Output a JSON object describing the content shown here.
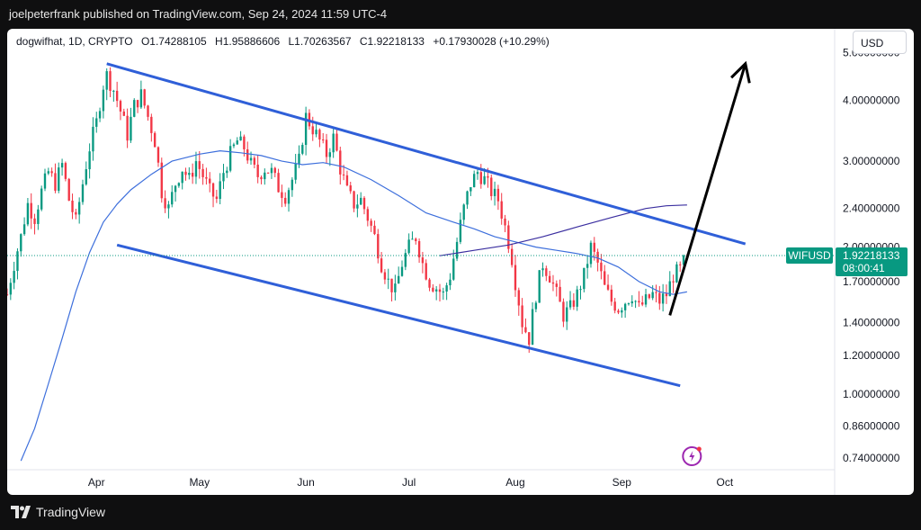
{
  "header": {
    "publisher_line": "joelpeterfrank published on TradingView.com, Sep 24, 2024 11:59 UTC-4"
  },
  "legend": {
    "symbol": "dogwifhat, 1D, CRYPTO",
    "open": "O1.74288105",
    "high": "H1.95886606",
    "low": "L1.70263567",
    "close": "C1.92218133",
    "change": "+0.17930028 (+10.29%)"
  },
  "currency_button": "USD",
  "price_tag": {
    "ticker": "WIFUSD",
    "price": "1.92218133",
    "countdown": "08:00:41",
    "color": "#089981"
  },
  "footer": {
    "brand": "TradingView"
  },
  "colors": {
    "up": "#089981",
    "down": "#f23645",
    "channel": "#2f5fd8",
    "ma_short": "#3d6fdc",
    "ma_long": "#3b2fa0",
    "arrow": "#000000"
  },
  "chart_data": {
    "type": "candlestick",
    "scale": "log",
    "y_tick_labels": [
      "5.00000000",
      "4.00000000",
      "3.00000000",
      "2.40000000",
      "2.00000000",
      "1.70000000",
      "1.40000000",
      "1.20000000",
      "1.00000000",
      "0.86000000",
      "0.74000000"
    ],
    "y_tick_values": [
      5.0,
      4.0,
      3.0,
      2.4,
      2.0,
      1.7,
      1.4,
      1.2,
      1.0,
      0.86,
      0.74
    ],
    "ylim": [
      0.7,
      5.6
    ],
    "x_tick_labels": [
      "Apr",
      "May",
      "Jun",
      "Jul",
      "Aug",
      "Sep",
      "Oct"
    ],
    "x_tick_days": [
      0,
      30,
      61,
      91,
      122,
      153,
      183
    ],
    "x_range_days": [
      -26,
      215
    ],
    "last_price": 1.92218133,
    "price_points": [
      [
        -26,
        1.6
      ],
      [
        -24,
        1.85
      ],
      [
        -22,
        2.1
      ],
      [
        -20,
        2.45
      ],
      [
        -18,
        2.3
      ],
      [
        -16,
        2.6
      ],
      [
        -14,
        2.85
      ],
      [
        -12,
        2.7
      ],
      [
        -10,
        2.95
      ],
      [
        -8,
        2.5
      ],
      [
        -6,
        2.25
      ],
      [
        -4,
        2.7
      ],
      [
        -2,
        3.2
      ],
      [
        0,
        3.6
      ],
      [
        2,
        4.3
      ],
      [
        3,
        4.5
      ],
      [
        5,
        4.2
      ],
      [
        7,
        3.8
      ],
      [
        9,
        3.4
      ],
      [
        11,
        3.9
      ],
      [
        13,
        4.1
      ],
      [
        15,
        3.7
      ],
      [
        17,
        3.3
      ],
      [
        19,
        2.6
      ],
      [
        21,
        2.4
      ],
      [
        23,
        2.7
      ],
      [
        25,
        2.9
      ],
      [
        27,
        2.75
      ],
      [
        29,
        3.0
      ],
      [
        31,
        2.8
      ],
      [
        33,
        2.6
      ],
      [
        35,
        2.5
      ],
      [
        37,
        2.85
      ],
      [
        39,
        3.1
      ],
      [
        41,
        3.3
      ],
      [
        43,
        3.2
      ],
      [
        45,
        2.95
      ],
      [
        47,
        2.8
      ],
      [
        49,
        2.9
      ],
      [
        51,
        2.85
      ],
      [
        53,
        2.65
      ],
      [
        55,
        2.55
      ],
      [
        57,
        2.75
      ],
      [
        59,
        3.0
      ],
      [
        61,
        3.7
      ],
      [
        63,
        3.5
      ],
      [
        65,
        3.3
      ],
      [
        67,
        3.1
      ],
      [
        69,
        3.35
      ],
      [
        71,
        2.9
      ],
      [
        73,
        2.6
      ],
      [
        75,
        2.45
      ],
      [
        77,
        2.5
      ],
      [
        79,
        2.3
      ],
      [
        81,
        2.1
      ],
      [
        83,
        1.85
      ],
      [
        85,
        1.7
      ],
      [
        87,
        1.62
      ],
      [
        89,
        1.85
      ],
      [
        91,
        2.0
      ],
      [
        93,
        2.1
      ],
      [
        95,
        1.85
      ],
      [
        97,
        1.7
      ],
      [
        99,
        1.65
      ],
      [
        101,
        1.6
      ],
      [
        103,
        1.75
      ],
      [
        105,
        2.05
      ],
      [
        107,
        2.4
      ],
      [
        109,
        2.7
      ],
      [
        111,
        2.85
      ],
      [
        113,
        2.75
      ],
      [
        115,
        2.6
      ],
      [
        117,
        2.5
      ],
      [
        119,
        2.2
      ],
      [
        121,
        1.9
      ],
      [
        122,
        1.7
      ],
      [
        124,
        1.4
      ],
      [
        126,
        1.3
      ],
      [
        128,
        1.6
      ],
      [
        130,
        1.85
      ],
      [
        132,
        1.75
      ],
      [
        134,
        1.6
      ],
      [
        136,
        1.45
      ],
      [
        138,
        1.5
      ],
      [
        140,
        1.6
      ],
      [
        142,
        1.75
      ],
      [
        144,
        2.0
      ],
      [
        146,
        1.85
      ],
      [
        148,
        1.65
      ],
      [
        150,
        1.55
      ],
      [
        152,
        1.5
      ],
      [
        154,
        1.55
      ],
      [
        156,
        1.6
      ],
      [
        158,
        1.5
      ],
      [
        160,
        1.55
      ],
      [
        162,
        1.6
      ],
      [
        164,
        1.55
      ],
      [
        166,
        1.6
      ],
      [
        168,
        1.75
      ],
      [
        170,
        1.8
      ],
      [
        172,
        1.92
      ]
    ],
    "ma_short_points": [
      [
        -22,
        0.73
      ],
      [
        -18,
        0.85
      ],
      [
        -14,
        1.05
      ],
      [
        -10,
        1.3
      ],
      [
        -6,
        1.62
      ],
      [
        -2,
        1.95
      ],
      [
        2,
        2.25
      ],
      [
        6,
        2.45
      ],
      [
        10,
        2.62
      ],
      [
        16,
        2.82
      ],
      [
        22,
        3.0
      ],
      [
        30,
        3.1
      ],
      [
        36,
        3.15
      ],
      [
        42,
        3.12
      ],
      [
        48,
        3.08
      ],
      [
        54,
        3.0
      ],
      [
        60,
        2.95
      ],
      [
        66,
        2.98
      ],
      [
        72,
        2.92
      ],
      [
        80,
        2.75
      ],
      [
        88,
        2.55
      ],
      [
        96,
        2.35
      ],
      [
        104,
        2.25
      ],
      [
        110,
        2.18
      ],
      [
        116,
        2.1
      ],
      [
        122,
        2.05
      ],
      [
        128,
        2.0
      ],
      [
        134,
        1.97
      ],
      [
        140,
        1.94
      ],
      [
        146,
        1.9
      ],
      [
        152,
        1.82
      ],
      [
        158,
        1.7
      ],
      [
        164,
        1.62
      ],
      [
        168,
        1.6
      ],
      [
        172,
        1.62
      ]
    ],
    "ma_long_points": [
      [
        100,
        1.92
      ],
      [
        110,
        1.97
      ],
      [
        120,
        2.02
      ],
      [
        130,
        2.1
      ],
      [
        140,
        2.2
      ],
      [
        150,
        2.3
      ],
      [
        160,
        2.4
      ],
      [
        166,
        2.43
      ],
      [
        172,
        2.44
      ]
    ],
    "channel_upper": [
      [
        3,
        4.75
      ],
      [
        189,
        2.03
      ]
    ],
    "channel_lower": [
      [
        6,
        2.02
      ],
      [
        170,
        1.04
      ]
    ],
    "arrow": [
      [
        167,
        1.45
      ],
      [
        189,
        4.75
      ]
    ]
  }
}
